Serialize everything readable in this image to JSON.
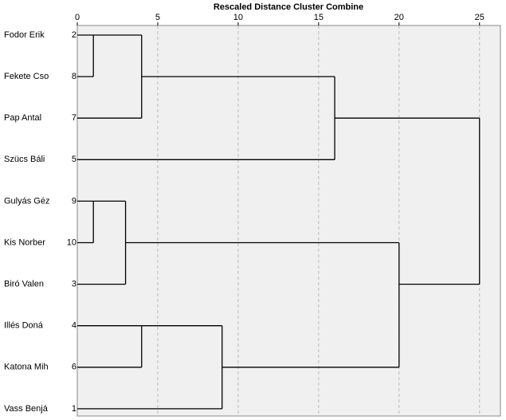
{
  "chart_data": {
    "type": "dendrogram",
    "title": "Rescaled Distance Cluster Combine",
    "xlim": [
      0,
      26.3
    ],
    "xticks": [
      0,
      5,
      10,
      15,
      20,
      25
    ],
    "grid": true,
    "color": "#000000",
    "tree": {
      "distance": 25,
      "children": [
        {
          "distance": 16,
          "children": [
            {
              "distance": 4,
              "children": [
                {
                  "distance": 1,
                  "children": [
                    {
                      "label": "Fodor Erik",
                      "case": 2
                    },
                    {
                      "label": "Fekete Cso",
                      "case": 8
                    }
                  ]
                },
                {
                  "label": "Pap Antal",
                  "case": 7
                }
              ]
            },
            {
              "label": "Szücs Báli",
              "case": 5
            }
          ]
        },
        {
          "distance": 20,
          "children": [
            {
              "distance": 3,
              "children": [
                {
                  "distance": 1,
                  "children": [
                    {
                      "label": "Gulyás Géz",
                      "case": 9
                    },
                    {
                      "label": "Kis Norber",
                      "case": 10
                    }
                  ]
                },
                {
                  "label": "Biró Valen",
                  "case": 3
                }
              ]
            },
            {
              "distance": 9,
              "children": [
                {
                  "distance": 4,
                  "children": [
                    {
                      "label": "Illés Doná",
                      "case": 4
                    },
                    {
                      "label": "Katona Mih",
                      "case": 6
                    }
                  ]
                },
                {
                  "label": "Vass Benjá",
                  "case": 1
                }
              ]
            }
          ]
        }
      ]
    }
  }
}
